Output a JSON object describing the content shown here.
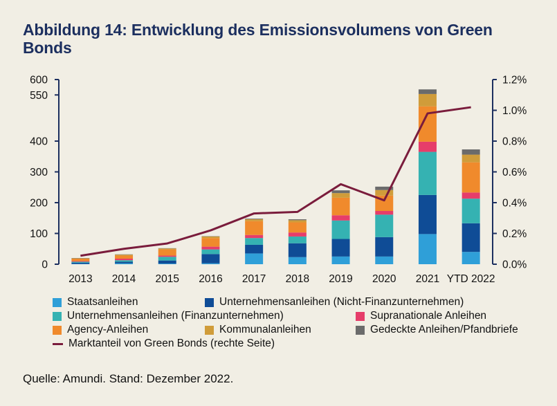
{
  "title": "Abbildung 14: Entwicklung des Emissionsvolumens von Green Bonds",
  "source": "Quelle: Amundi. Stand: Dezember 2022.",
  "chart_data": {
    "type": "bar",
    "stacked": true,
    "categories": [
      "2013",
      "2014",
      "2015",
      "2016",
      "2017",
      "2018",
      "2019",
      "2020",
      "2021",
      "YTD 2022"
    ],
    "left_axis": {
      "ylim": [
        0,
        600
      ],
      "ticks": [
        0,
        100,
        200,
        300,
        400,
        550,
        600
      ],
      "tick_labels": [
        "0",
        "100",
        "200",
        "300",
        "400",
        "550",
        "600"
      ]
    },
    "right_axis": {
      "ylim": [
        0,
        1.2
      ],
      "ticks": [
        0,
        0.2,
        0.4,
        0.6,
        0.8,
        1.0,
        1.2
      ],
      "tick_labels": [
        "0.0%",
        "0.2%",
        "0.4%",
        "0.6%",
        "0.8%",
        "1.0%",
        "1.2%"
      ]
    },
    "series": [
      {
        "name": "Staatsanleihen",
        "color": "#2f9fd8",
        "values": [
          1,
          3,
          2,
          3,
          35,
          23,
          25,
          25,
          98,
          40
        ]
      },
      {
        "name": "Unternehmensanleihen (Nicht-Finanzunternehmen)",
        "color": "#0f4c96",
        "values": [
          4,
          5,
          10,
          30,
          28,
          45,
          57,
          63,
          127,
          93
        ]
      },
      {
        "name": "Unternehmensanleihen (Finanzunternehmen)",
        "color": "#35b2b2",
        "values": [
          3,
          5,
          12,
          15,
          22,
          22,
          60,
          73,
          140,
          80
        ]
      },
      {
        "name": "Supranationale Anleihen",
        "color": "#e63d6a",
        "values": [
          2,
          5,
          4,
          9,
          10,
          13,
          17,
          12,
          33,
          20
        ]
      },
      {
        "name": "Agency-Anleihen",
        "color": "#f08a2c",
        "values": [
          8,
          10,
          20,
          28,
          45,
          33,
          57,
          50,
          115,
          98
        ]
      },
      {
        "name": "Kommunalanleihen",
        "color": "#d09c3a",
        "values": [
          1,
          3,
          3,
          5,
          6,
          7,
          15,
          18,
          40,
          25
        ]
      },
      {
        "name": "Gedeckte Anleihen/Pfandbriefe",
        "color": "#6b6b6b",
        "values": [
          1,
          1,
          1,
          1,
          2,
          3,
          9,
          11,
          15,
          17
        ]
      }
    ],
    "line": {
      "name": "Marktanteil von Green Bonds (rechte Seite)",
      "color": "#7a1c3c",
      "axis": "right",
      "values": [
        0.055,
        0.1,
        0.135,
        0.22,
        0.33,
        0.34,
        0.52,
        0.415,
        0.98,
        1.02
      ]
    },
    "legend_placement": "bottom"
  },
  "legend": {
    "row1": [
      "Staatsanleihen",
      "Unternehmensanleihen (Nicht-Finanzunternehmen)"
    ],
    "row2": [
      "Unternehmensanleihen (Finanzunternehmen)",
      "Supranationale Anleihen"
    ],
    "row3": [
      "Agency-Anleihen",
      "Kommunalanleihen",
      "Gedeckte Anleihen/Pfandbriefe"
    ],
    "row4": [
      "Marktanteil von Green Bonds (rechte Seite)"
    ]
  }
}
